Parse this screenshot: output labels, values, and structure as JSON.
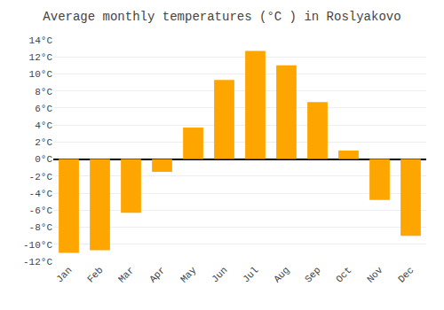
{
  "chart_data": {
    "type": "bar",
    "title": "Average monthly temperatures (°C ) in Roslyakovo",
    "categories": [
      "Jan",
      "Feb",
      "Mar",
      "Apr",
      "May",
      "Jun",
      "Jul",
      "Aug",
      "Sep",
      "Oct",
      "Nov",
      "Dec"
    ],
    "values": [
      -11,
      -10.7,
      -6.3,
      -1.5,
      3.7,
      9.3,
      12.7,
      11.0,
      6.7,
      1.0,
      -4.8,
      -9.0
    ],
    "color": "#FFA500",
    "ylim": [
      -12,
      14
    ],
    "yticks": [
      {
        "value": -12,
        "label": "-12°C"
      },
      {
        "value": -10,
        "label": "-10°C"
      },
      {
        "value": -8,
        "label": "-8°C"
      },
      {
        "value": -6,
        "label": "-6°C"
      },
      {
        "value": -4,
        "label": "-4°C"
      },
      {
        "value": -2,
        "label": "-2°C"
      },
      {
        "value": 0,
        "label": "0°C"
      },
      {
        "value": 2,
        "label": "2°C"
      },
      {
        "value": 4,
        "label": "4°C"
      },
      {
        "value": 6,
        "label": "6°C"
      },
      {
        "value": 8,
        "label": "8°C"
      },
      {
        "value": 10,
        "label": "10°C"
      },
      {
        "value": 12,
        "label": "12°C"
      },
      {
        "value": 14,
        "label": "14°C"
      }
    ],
    "grid": true
  }
}
